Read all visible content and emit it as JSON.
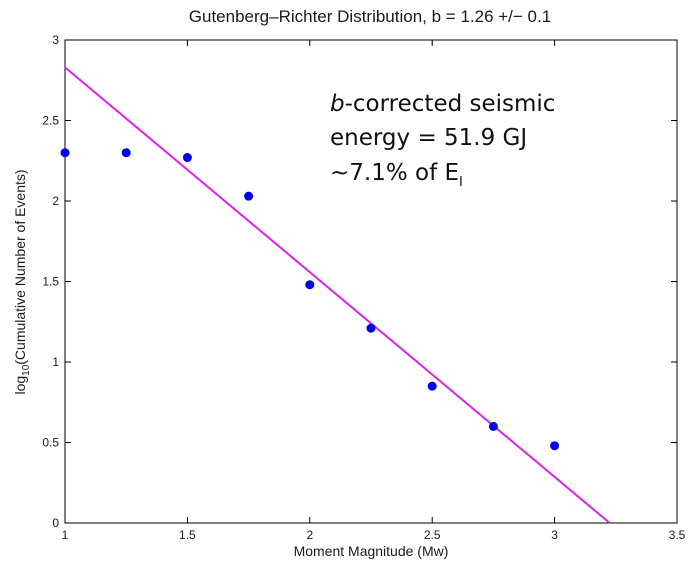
{
  "chart_data": {
    "type": "scatter",
    "title": "Gutenberg–Richter Distribution, b = 1.26 +/− 0.1",
    "xlabel": "Moment Magnitude (Mw)",
    "ylabel_prefix": "log",
    "ylabel_sub": "10",
    "ylabel_rest": "(Cumulative Number of Events)",
    "xlim": [
      1,
      3.5
    ],
    "ylim": [
      0,
      3
    ],
    "x_ticks": [
      "1",
      "1.5",
      "2",
      "2.5",
      "3",
      "3.5"
    ],
    "y_ticks": [
      "0",
      "0.5",
      "1",
      "1.5",
      "2",
      "2.5",
      "3"
    ],
    "grid": false,
    "series": [
      {
        "x": [
          1.0,
          1.25,
          1.5,
          1.75,
          2.0,
          2.25,
          2.5,
          2.75,
          3.0
        ],
        "y": [
          2.3,
          2.3,
          2.27,
          2.03,
          1.48,
          1.21,
          0.85,
          0.6,
          0.48
        ],
        "color": "#0000ee"
      }
    ],
    "fit_line": {
      "x": [
        1.0,
        3.225
      ],
      "y": [
        2.83,
        0.0
      ],
      "color": "#dd22ee"
    },
    "annotation": {
      "line1_italic": "b",
      "line1_rest": "-corrected seismic",
      "line2": "energy = 51.9 GJ",
      "line3_prefix": "~7.1% of E",
      "line3_sub": "I"
    }
  }
}
